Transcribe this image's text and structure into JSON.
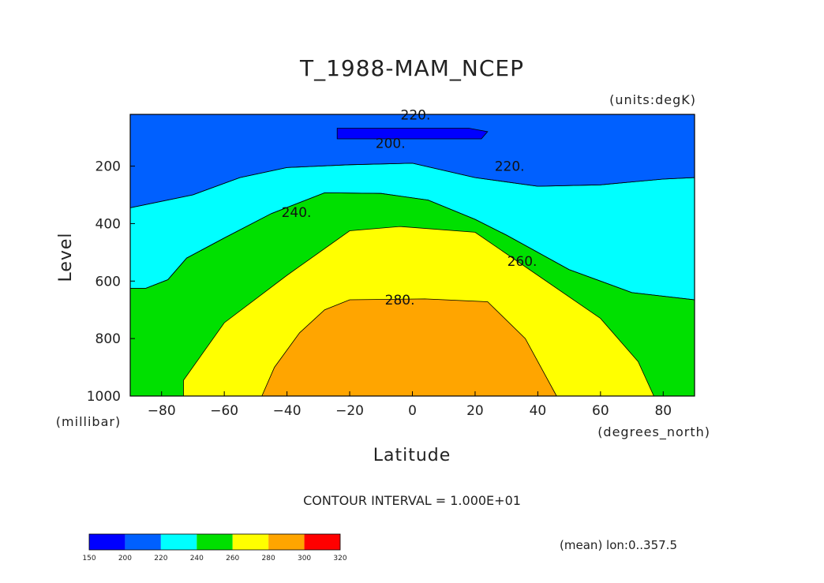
{
  "chart_data": {
    "type": "heatmap",
    "subtype": "filled-contour",
    "title": "T_1988-MAM_NCEP",
    "units_label": "(units:degK)",
    "xlabel": "Latitude",
    "x_units_label": "(degrees_north)",
    "ylabel": "Level",
    "y_units_label": "(millibar)",
    "xlim": [
      -90,
      90
    ],
    "ylim": [
      1000,
      20
    ],
    "y_inverted": true,
    "x_ticks": [
      -80,
      -60,
      -40,
      -20,
      0,
      20,
      40,
      60,
      80
    ],
    "x_tick_labels": [
      "−80",
      "−60",
      "−40",
      "−20",
      "0",
      "20",
      "40",
      "60",
      "80"
    ],
    "y_ticks": [
      200,
      400,
      600,
      800,
      1000
    ],
    "y_tick_labels": [
      "200",
      "400",
      "600",
      "800",
      "1000"
    ],
    "footer": "CONTOUR INTERVAL = 1.000E+01",
    "note": "(mean) lon:0..357.5",
    "colorbar": {
      "levels": [
        150,
        200,
        220,
        240,
        260,
        280,
        300,
        320
      ],
      "level_labels": [
        "150",
        "200",
        "220",
        "240",
        "260",
        "280",
        "300",
        "320"
      ],
      "colors": [
        "#0000ff",
        "#0060ff",
        "#00ffff",
        "#00e000",
        "#ffff00",
        "#ffa500",
        "#ff0000"
      ]
    },
    "contour_labels": [
      {
        "text": "220.",
        "lat": 1,
        "level": 22
      },
      {
        "text": "200.",
        "lat": -7,
        "level": 120
      },
      {
        "text": "220.",
        "lat": 31,
        "level": 200
      },
      {
        "text": "240.",
        "lat": -37,
        "level": 360
      },
      {
        "text": "260.",
        "lat": 35,
        "level": 530
      },
      {
        "text": "280.",
        "lat": -4,
        "level": 665
      }
    ],
    "filled_regions": [
      {
        "color": "#0060ff",
        "value_range": [
          200,
          220
        ],
        "boundary": [
          [
            -90,
            20
          ],
          [
            90,
            20
          ],
          [
            90,
            240
          ],
          [
            80,
            245
          ],
          [
            70,
            255
          ],
          [
            60,
            265
          ],
          [
            40,
            270
          ],
          [
            20,
            240
          ],
          [
            0,
            190
          ],
          [
            -20,
            195
          ],
          [
            -40,
            205
          ],
          [
            -55,
            240
          ],
          [
            -70,
            300
          ],
          [
            -90,
            345
          ]
        ]
      },
      {
        "color": "#00ffff",
        "value_range": [
          220,
          240
        ],
        "boundary": [
          [
            -90,
            345
          ],
          [
            -70,
            300
          ],
          [
            -55,
            240
          ],
          [
            -40,
            205
          ],
          [
            -20,
            195
          ],
          [
            0,
            190
          ],
          [
            20,
            240
          ],
          [
            40,
            270
          ],
          [
            60,
            265
          ],
          [
            70,
            255
          ],
          [
            80,
            245
          ],
          [
            90,
            240
          ],
          [
            90,
            665
          ],
          [
            70,
            640
          ],
          [
            50,
            560
          ],
          [
            30,
            440
          ],
          [
            20,
            385
          ],
          [
            5,
            318
          ],
          [
            -10,
            295
          ],
          [
            -28,
            293
          ],
          [
            -45,
            365
          ],
          [
            -60,
            450
          ],
          [
            -72,
            520
          ],
          [
            -78,
            595
          ],
          [
            -85,
            625
          ],
          [
            -90,
            625
          ]
        ]
      },
      {
        "color": "#0000ff",
        "value_range": [
          150,
          200
        ],
        "boundary": [
          [
            -24,
            68
          ],
          [
            -24,
            105
          ],
          [
            22,
            105
          ],
          [
            24,
            80
          ],
          [
            18,
            68
          ]
        ]
      },
      {
        "color": "#00e000",
        "value_range": [
          240,
          260
        ],
        "boundary": [
          [
            -90,
            625
          ],
          [
            -85,
            625
          ],
          [
            -78,
            595
          ],
          [
            -72,
            520
          ],
          [
            -60,
            450
          ],
          [
            -45,
            365
          ],
          [
            -28,
            293
          ],
          [
            -10,
            295
          ],
          [
            5,
            318
          ],
          [
            20,
            385
          ],
          [
            30,
            440
          ],
          [
            50,
            560
          ],
          [
            70,
            640
          ],
          [
            90,
            665
          ],
          [
            90,
            1000
          ],
          [
            -90,
            1000
          ]
        ]
      },
      {
        "color": "#ffff00",
        "value_range": [
          260,
          280
        ],
        "boundary": [
          [
            -73,
            1000
          ],
          [
            -73,
            945
          ],
          [
            -60,
            745
          ],
          [
            -40,
            580
          ],
          [
            -20,
            425
          ],
          [
            -4,
            410
          ],
          [
            20,
            430
          ],
          [
            40,
            580
          ],
          [
            60,
            730
          ],
          [
            72,
            880
          ],
          [
            77,
            1000
          ]
        ]
      },
      {
        "color": "#ffa500",
        "value_range": [
          280,
          300
        ],
        "boundary": [
          [
            -48,
            1000
          ],
          [
            -44,
            900
          ],
          [
            -36,
            780
          ],
          [
            -28,
            700
          ],
          [
            -20,
            665
          ],
          [
            4,
            662
          ],
          [
            24,
            672
          ],
          [
            36,
            800
          ],
          [
            46,
            1000
          ]
        ]
      }
    ]
  }
}
